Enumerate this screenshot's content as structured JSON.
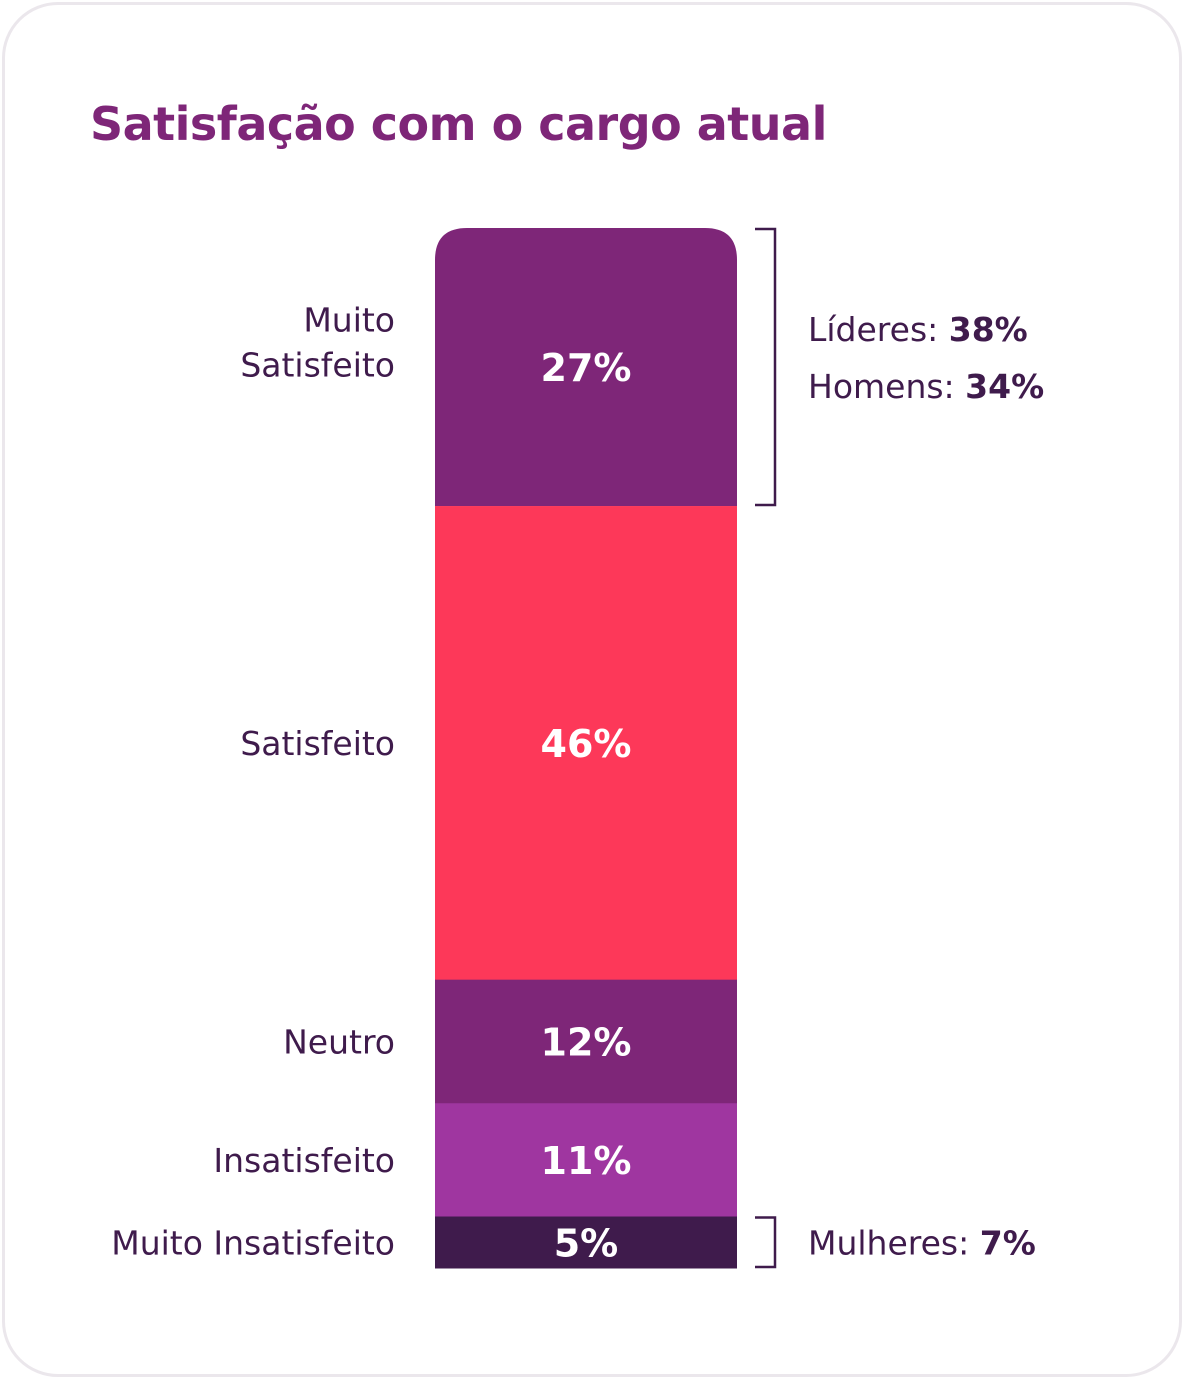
{
  "colors": {
    "title": "#7e2678",
    "text": "#3f1b4c",
    "muito_satisfeito": "#7e2678",
    "satisfeito": "#fd3859",
    "neutro": "#7e2678",
    "insatisfeito": "#9f36a0",
    "muito_insatisfeito": "#3f1b4c",
    "value_label": "#ffffff"
  },
  "chart_data": {
    "type": "bar",
    "stacked": true,
    "title": "Satisfação com o cargo atual",
    "unit": "%",
    "categories": [
      "Muito Satisfeito",
      "Satisfeito",
      "Neutro",
      "Insatisfeito",
      "Muito Insatisfeito"
    ],
    "values": [
      27,
      46,
      12,
      11,
      5
    ],
    "value_labels": [
      "27%",
      "46%",
      "12%",
      "11%",
      "5%"
    ],
    "category_lines": [
      [
        "Muito",
        "Satisfeito"
      ],
      [
        "Satisfeito"
      ],
      [
        "Neutro"
      ],
      [
        "Insatisfeito"
      ],
      [
        "Muito Insatisfeito"
      ]
    ],
    "annotations": [
      {
        "target": "Muito Satisfeito",
        "items": [
          {
            "label": "Líderes: ",
            "value": "38%"
          },
          {
            "label": "Homens: ",
            "value": "34%"
          }
        ]
      },
      {
        "target": "Muito Insatisfeito",
        "items": [
          {
            "label": "Mulheres: ",
            "value": "7%"
          }
        ]
      }
    ]
  }
}
